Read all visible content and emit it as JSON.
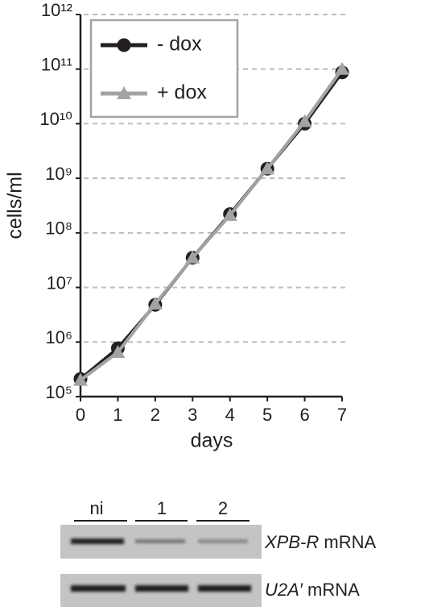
{
  "chart_data": {
    "type": "line",
    "x": [
      0,
      1,
      2,
      3,
      4,
      5,
      6,
      7
    ],
    "series": [
      {
        "name": "- dox",
        "color": "#231f20",
        "marker": "circle",
        "values": [
          210000,
          770000,
          4800000,
          35000000,
          220000000,
          1500000000,
          10000000000,
          87000000000
        ]
      },
      {
        "name": "+ dox",
        "color": "#a3a3a3",
        "marker": "triangle",
        "values": [
          200000,
          650000,
          5000000,
          35000000,
          210000000,
          1500000000,
          11000000000,
          100000000000
        ]
      }
    ],
    "xlabel": "days",
    "ylabel": "cells/ml",
    "xlim": [
      0,
      7
    ],
    "xticks": [
      0,
      1,
      2,
      3,
      4,
      5,
      6,
      7
    ],
    "ylim": [
      100000,
      1000000000000
    ],
    "ylog": true,
    "yticks": [
      {
        "value": 100000,
        "label": "10⁵"
      },
      {
        "value": 1000000,
        "label": "10⁶"
      },
      {
        "value": 10000000,
        "label": "10⁷"
      },
      {
        "value": 100000000,
        "label": "10⁸"
      },
      {
        "value": 1000000000,
        "label": "10⁹"
      },
      {
        "value": 10000000000,
        "label": "10¹⁰"
      },
      {
        "value": 100000000000,
        "label": "10¹¹"
      },
      {
        "value": 1000000000000,
        "label": "10¹²"
      }
    ],
    "grid": true,
    "legend": "upper left"
  },
  "gel": {
    "lanes": [
      "ni",
      "1",
      "2"
    ],
    "rows": [
      {
        "gene": "XPB-R",
        "suffix": "mRNA"
      },
      {
        "gene": "U2A′",
        "suffix": "mRNA"
      }
    ]
  }
}
